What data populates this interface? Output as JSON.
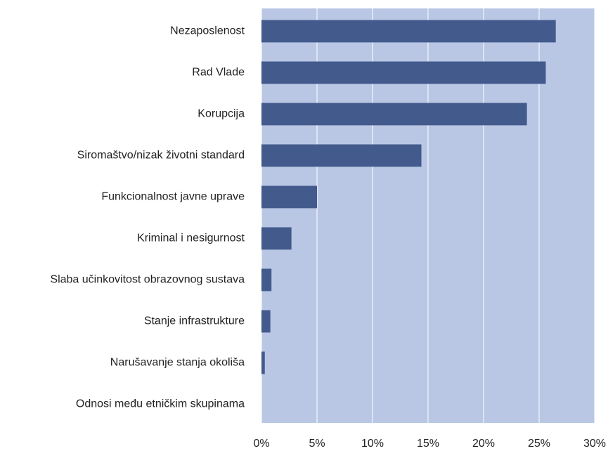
{
  "chart_data": {
    "type": "bar",
    "orientation": "horizontal",
    "categories": [
      "Nezaposlenost",
      "Rad Vlade",
      "Korupcija",
      "Siromaštvo/nizak životni standard",
      "Funkcionalnost javne uprave",
      "Kriminal i nesigurnost",
      "Slaba učinkovitost obrazovnog sustava",
      "Stanje infrastrukture",
      "Narušavanje stanja okoliša",
      "Odnosi među etničkim skupinama"
    ],
    "values": [
      26.5,
      25.6,
      23.9,
      14.4,
      5.0,
      2.7,
      0.9,
      0.8,
      0.3,
      0
    ],
    "color": "#435a8c",
    "plot_background": "#b9c7e5",
    "xlim": [
      0,
      30
    ],
    "xticks": [
      {
        "value": 0,
        "label": "0%"
      },
      {
        "value": 5,
        "label": "5%"
      },
      {
        "value": 10,
        "label": "10%"
      },
      {
        "value": 15,
        "label": "15%"
      },
      {
        "value": 20,
        "label": "20%"
      },
      {
        "value": 25,
        "label": "25%"
      },
      {
        "value": 30,
        "label": "30%"
      }
    ],
    "grid": true
  }
}
